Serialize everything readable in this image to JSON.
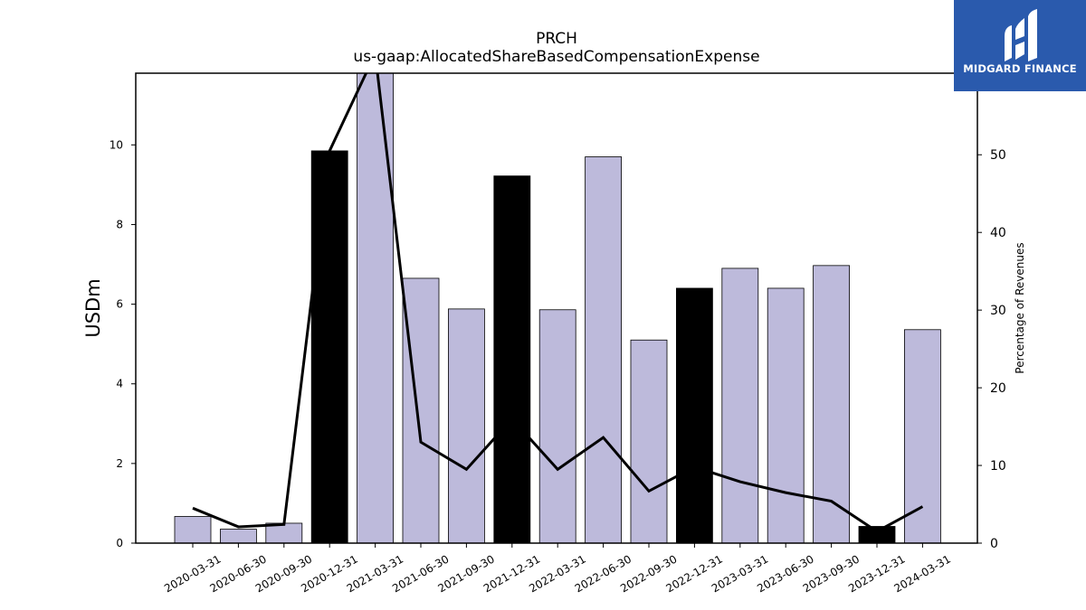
{
  "chart_data": {
    "type": "bar",
    "title": "PRCH",
    "subtitle": "us-gaap:AllocatedShareBasedCompensationExpense",
    "ylabel": "USDm",
    "ylabel_right": "Percentage of Revenues",
    "categories": [
      "2020-03-31",
      "2020-06-30",
      "2020-09-30",
      "2020-12-31",
      "2021-03-31",
      "2021-06-30",
      "2021-09-30",
      "2021-12-31",
      "2022-03-31",
      "2022-06-30",
      "2022-09-30",
      "2022-12-31",
      "2023-03-31",
      "2023-06-30",
      "2023-09-30",
      "2023-12-31",
      "2024-03-31"
    ],
    "series": [
      {
        "type": "bar",
        "axis": "left",
        "values": [
          0.67,
          0.35,
          0.5,
          9.85,
          11.8,
          6.65,
          5.88,
          9.22,
          5.86,
          9.7,
          5.1,
          6.4,
          6.9,
          6.4,
          6.97,
          0.42,
          5.36
        ],
        "highlight": [
          false,
          false,
          false,
          true,
          false,
          false,
          false,
          true,
          false,
          false,
          false,
          true,
          false,
          false,
          false,
          true,
          false
        ]
      },
      {
        "type": "line",
        "axis": "right",
        "values": [
          4.5,
          2.1,
          2.4,
          50.5,
          63.0,
          13.0,
          9.5,
          16.0,
          9.5,
          13.6,
          6.7,
          9.8,
          7.9,
          6.5,
          5.4,
          1.5,
          4.7
        ]
      }
    ],
    "ylim": [
      0,
      11.8
    ],
    "ylim_right": [
      0,
      60.5
    ],
    "yticks": [
      0,
      2,
      4,
      6,
      8,
      10
    ],
    "yticks_right": [
      0,
      10,
      20,
      30,
      40,
      50
    ],
    "colors": {
      "bar": "#bdbadb",
      "highlight": "#000000",
      "line": "#000000",
      "edge": "#000000"
    },
    "grid": false,
    "legend": "none"
  },
  "logo": {
    "text": "MIDGARD FINANCE",
    "background": "#2a5aad"
  }
}
